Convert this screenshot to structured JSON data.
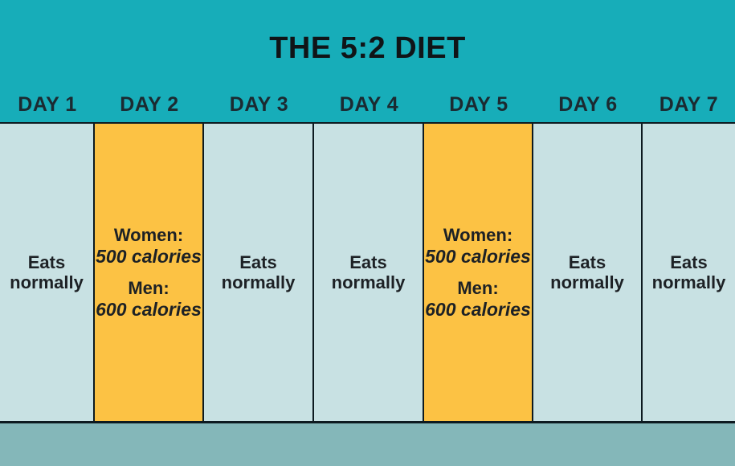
{
  "title": "THE 5:2 DIET",
  "colors": {
    "header_bg": "#17ADB9",
    "normal_cell_bg": "#C8E1E3",
    "fasting_cell_bg": "#FCC244",
    "footer_bg": "#84B7B9",
    "border": "#0D1A20",
    "text": "#1D2125",
    "day_label_text": "#1B2A31"
  },
  "days": [
    {
      "label": "DAY 1",
      "type": "normal",
      "text": "Eats normally"
    },
    {
      "label": "DAY 2",
      "type": "fasting",
      "women_label": "Women:",
      "women_calories": "500 calories",
      "men_label": "Men:",
      "men_calories": "600 calories"
    },
    {
      "label": "DAY 3",
      "type": "normal",
      "text": "Eats normally"
    },
    {
      "label": "DAY 4",
      "type": "normal",
      "text": "Eats normally"
    },
    {
      "label": "DAY 5",
      "type": "fasting",
      "women_label": "Women:",
      "women_calories": "500 calories",
      "men_label": "Men:",
      "men_calories": "600 calories"
    },
    {
      "label": "DAY 6",
      "type": "normal",
      "text": "Eats normally"
    },
    {
      "label": "DAY 7",
      "type": "normal",
      "text": "Eats normally"
    }
  ]
}
